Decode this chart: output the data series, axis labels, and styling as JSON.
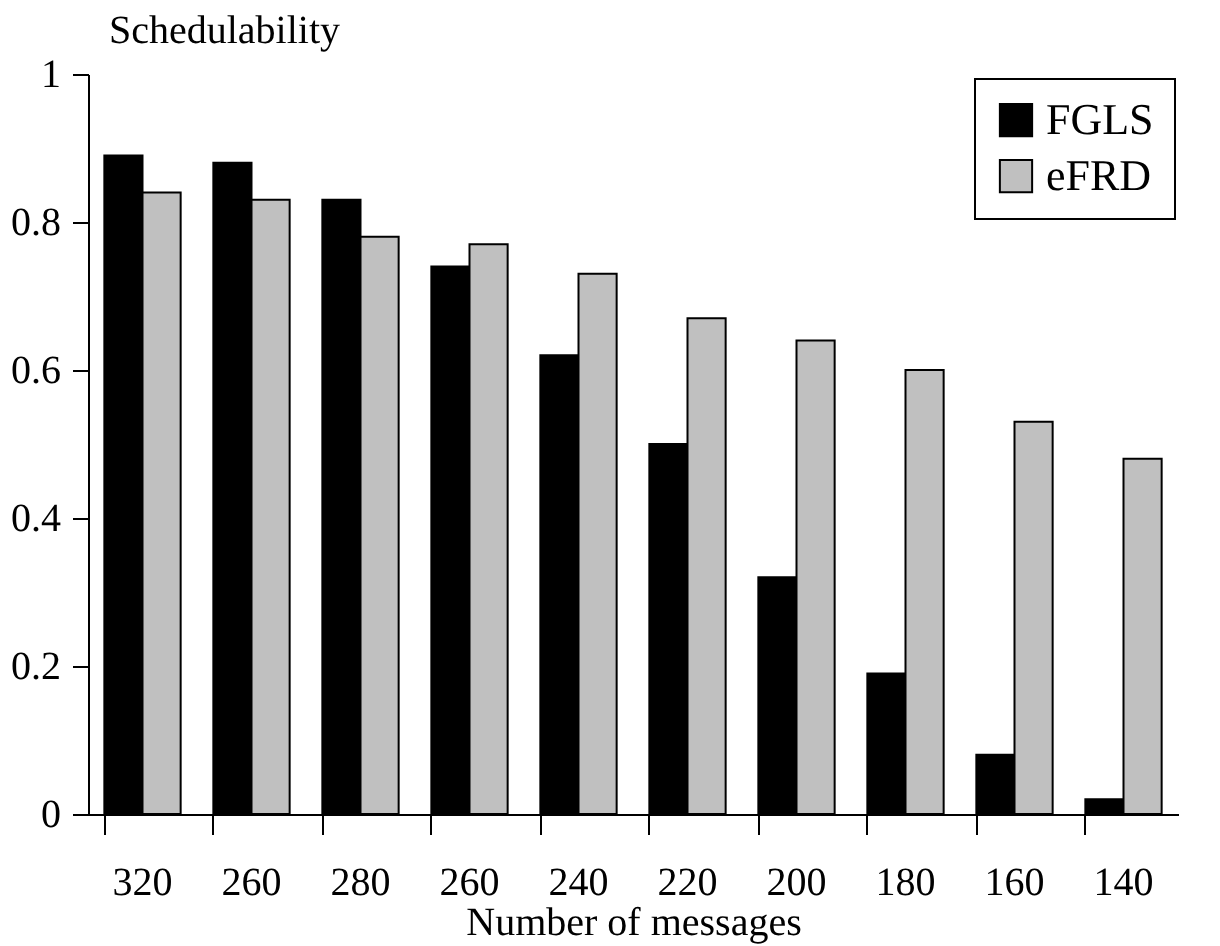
{
  "chart_data": {
    "type": "bar",
    "xlabel": "Number of messages",
    "ylabel": "Schedulability",
    "categories": [
      "320",
      "260",
      "280",
      "260",
      "240",
      "220",
      "200",
      "180",
      "160",
      "140"
    ],
    "series": [
      {
        "name": "FGLS",
        "color": "#000000",
        "values": [
          0.89,
          0.88,
          0.83,
          0.74,
          0.62,
          0.5,
          0.32,
          0.19,
          0.08,
          0.02
        ]
      },
      {
        "name": "eFRD",
        "color": "#c0c0c0",
        "values": [
          0.84,
          0.83,
          0.78,
          0.77,
          0.73,
          0.67,
          0.64,
          0.6,
          0.53,
          0.48
        ]
      }
    ],
    "ylim": [
      0,
      1
    ],
    "yticks": [
      0,
      0.2,
      0.4,
      0.6,
      0.8,
      1
    ],
    "grid": false,
    "legend": "top right"
  }
}
